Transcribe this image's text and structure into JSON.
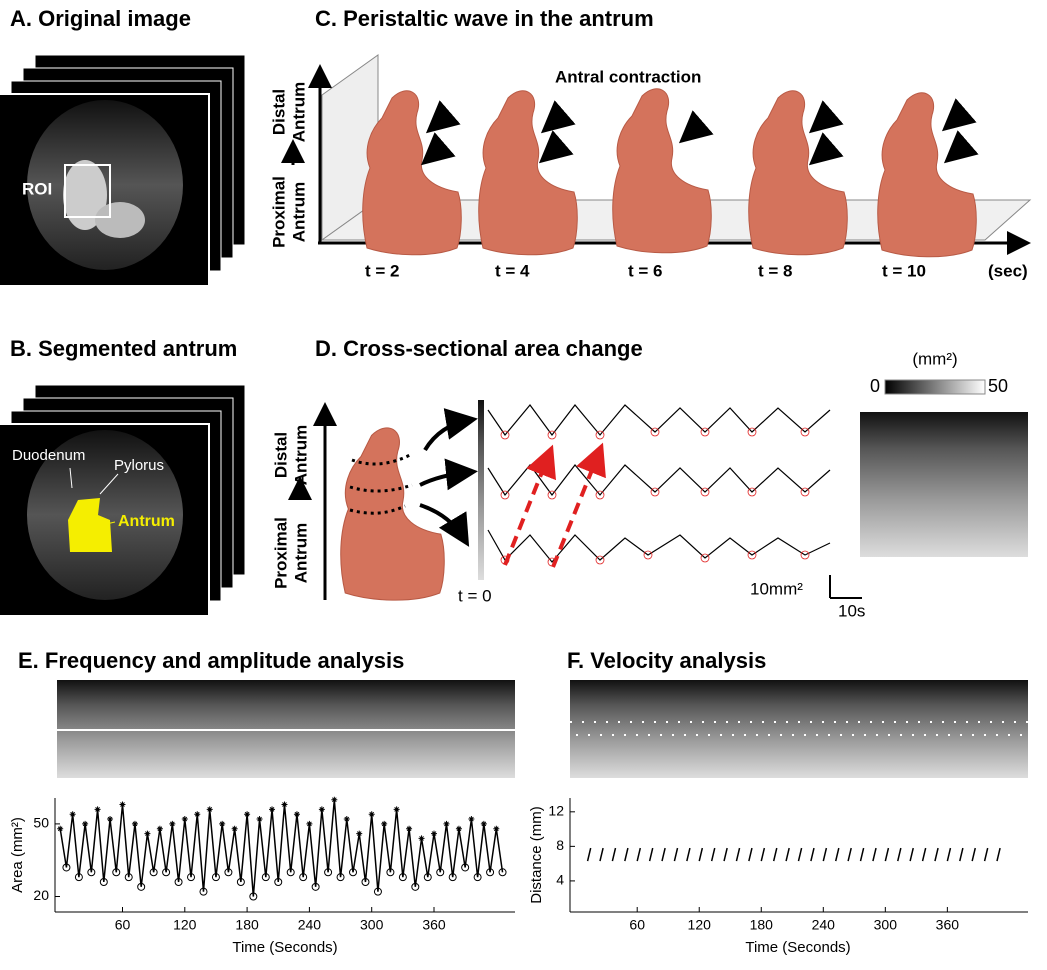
{
  "panel_a": {
    "title": "A. Original image",
    "roi": "ROI"
  },
  "panel_b": {
    "title": "B. Segmented antrum",
    "duodenum": "Duodenum",
    "pylorus": "Pylorus",
    "antrum": "Antrum"
  },
  "panel_c": {
    "title": "C. Peristaltic wave in the antrum",
    "annotation": "Antral contraction",
    "distal": [
      "Distal",
      "Antrum"
    ],
    "proximal": [
      "Proximal",
      "Antrum"
    ],
    "times": [
      "t = 2",
      "t = 4",
      "t = 6",
      "t = 8",
      "t = 10"
    ],
    "unit": "(sec)"
  },
  "panel_d": {
    "title": "D. Cross-sectional area change",
    "distal": [
      "Distal",
      "Antrum"
    ],
    "proximal": [
      "Proximal",
      "Antrum"
    ],
    "start": "t = 0",
    "scale_area": "10mm²",
    "scale_time": "10s",
    "colorbar_unit": "(mm²)",
    "colorbar_min": "0",
    "colorbar_max": "50"
  },
  "panel_e": {
    "title": "E. Frequency and amplitude analysis",
    "y_label": "Area (mm²)",
    "x_label": "Time (Seconds)",
    "xlim": [
      -5,
      438
    ],
    "ylim": [
      13.6,
      60.7
    ],
    "xticks": [
      60,
      120,
      180,
      240,
      300,
      360
    ],
    "yticks": [
      20,
      50
    ],
    "x": [
      0,
      6,
      12,
      18,
      24,
      30,
      36,
      42,
      48,
      54,
      60,
      66,
      72,
      78,
      84,
      90,
      96,
      102,
      108,
      114,
      120,
      126,
      132,
      138,
      144,
      150,
      156,
      162,
      168,
      174,
      180,
      186,
      192,
      198,
      204,
      210,
      216,
      222,
      228,
      234,
      240,
      246,
      252,
      258,
      264,
      270,
      276,
      282,
      288,
      294,
      300,
      306,
      312,
      318,
      324,
      330,
      336,
      342,
      348,
      354,
      360,
      366,
      372,
      378,
      384,
      390,
      396,
      402,
      408,
      414,
      420,
      426
    ],
    "values": [
      48,
      32,
      54,
      28,
      50,
      30,
      56,
      26,
      52,
      30,
      58,
      28,
      50,
      24,
      46,
      30,
      48,
      30,
      50,
      26,
      52,
      28,
      54,
      22,
      56,
      28,
      50,
      30,
      48,
      26,
      54,
      20,
      52,
      28,
      56,
      26,
      58,
      30,
      54,
      28,
      50,
      24,
      56,
      30,
      60,
      28,
      52,
      30,
      46,
      26,
      54,
      22,
      50,
      30,
      56,
      28,
      48,
      24,
      44,
      28,
      46,
      30,
      50,
      28,
      48,
      32,
      52,
      28,
      50,
      30,
      48,
      30
    ]
  },
  "panel_f": {
    "title": "F. Velocity analysis",
    "y_label": "Distance (mm)",
    "x_label": "Time (Seconds)",
    "xlim": [
      -5,
      438
    ],
    "ylim": [
      0.4,
      13.6
    ],
    "xticks": [
      60,
      120,
      180,
      240,
      300,
      360
    ],
    "yticks": [
      4,
      8,
      12
    ],
    "x_start": [
      12,
      24,
      36,
      48,
      60,
      72,
      84,
      96,
      108,
      120,
      132,
      144,
      156,
      168,
      180,
      192,
      204,
      216,
      228,
      240,
      252,
      264,
      276,
      288,
      300,
      312,
      324,
      336,
      348,
      360,
      372,
      384,
      396,
      408
    ],
    "x_end": [
      15,
      27,
      39,
      51,
      63,
      75,
      87,
      99,
      111,
      123,
      135,
      147,
      159,
      171,
      183,
      195,
      207,
      219,
      231,
      243,
      255,
      267,
      279,
      291,
      303,
      315,
      327,
      339,
      351,
      363,
      375,
      387,
      399,
      411
    ],
    "y_start": 6.3,
    "y_end": 7.8
  }
}
